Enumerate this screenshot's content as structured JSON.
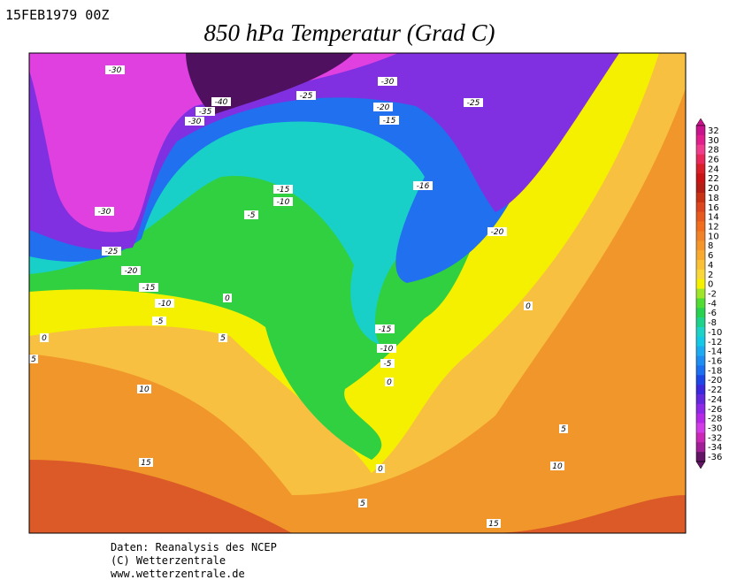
{
  "header": {
    "date": "15FEB1979 00Z",
    "title": "850 hPa Temperatur (Grad C)"
  },
  "map": {
    "contour_labels": [
      -30,
      -40,
      -35,
      -30,
      -25,
      -30,
      -25,
      -20,
      -15,
      -15,
      -10,
      -5,
      -16,
      -20,
      -30,
      -25,
      -20,
      -15,
      -10,
      -5,
      0,
      0,
      5,
      5,
      10,
      15,
      -15,
      -10,
      -5,
      0,
      0,
      5,
      10,
      0,
      5,
      15
    ]
  },
  "colorbar": {
    "levels": [
      32,
      30,
      28,
      26,
      24,
      22,
      20,
      18,
      16,
      14,
      12,
      10,
      8,
      6,
      4,
      2,
      0,
      -2,
      -4,
      -6,
      -8,
      -10,
      -12,
      -14,
      -16,
      -18,
      -20,
      -22,
      -24,
      -26,
      -28,
      -30,
      -32,
      -34,
      -36
    ],
    "colors": [
      "#c8148c",
      "#e01e8c",
      "#f03c8c",
      "#e8285a",
      "#d81e28",
      "#c81414",
      "#b41e14",
      "#c83214",
      "#dc461e",
      "#e65a1e",
      "#f06e1e",
      "#f08228",
      "#f5962a",
      "#f8aa30",
      "#fac036",
      "#fad83c",
      "#f5f000",
      "#a0e628",
      "#50dc32",
      "#28d250",
      "#1ed28c",
      "#1ed2c8",
      "#14c8e6",
      "#1eaaf0",
      "#1e8cf0",
      "#1e6ef0",
      "#1e46e6",
      "#3c28dc",
      "#6428dc",
      "#8c28e6",
      "#b428e6",
      "#d23ce6",
      "#c828b4",
      "#a01e96",
      "#641464"
    ]
  },
  "footer": {
    "lines": [
      "Daten: Reanalysis des NCEP",
      "(C) Wetterzentrale",
      "www.wetterzentrale.de"
    ]
  }
}
